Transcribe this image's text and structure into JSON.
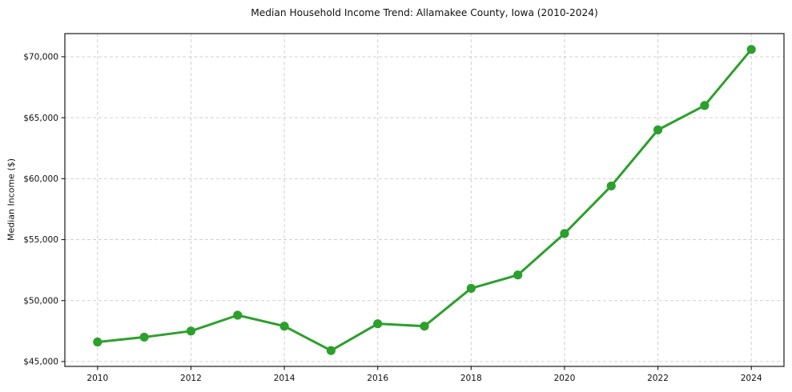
{
  "chart_data": {
    "type": "line",
    "title": "Median Household Income Trend: Allamakee County, Iowa (2010-2024)",
    "xlabel": "",
    "ylabel": "Median Income ($)",
    "series": [
      {
        "name": "Median Household Income",
        "x": [
          2010,
          2011,
          2012,
          2013,
          2014,
          2015,
          2016,
          2017,
          2018,
          2019,
          2020,
          2021,
          2022,
          2023,
          2024
        ],
        "values": [
          46600,
          47000,
          47500,
          48800,
          47900,
          45900,
          48100,
          47900,
          51000,
          52100,
          55500,
          59400,
          64000,
          66000,
          70600
        ]
      }
    ],
    "xlim": [
      2009.3,
      2024.7
    ],
    "ylim": [
      44600,
      71900
    ],
    "xticks": [
      2010,
      2012,
      2014,
      2016,
      2018,
      2020,
      2022,
      2024
    ],
    "yticks": [
      45000,
      50000,
      55000,
      60000,
      65000,
      70000
    ],
    "ytick_labels": [
      "$45,000",
      "$50,000",
      "$55,000",
      "$60,000",
      "$65,000",
      "$70,000"
    ],
    "grid": true,
    "grid_style": "dashed",
    "legend_position": "none",
    "colors": {
      "line": "#2ca02c",
      "marker": "#2ca02c",
      "grid": "#cccccc",
      "spine": "#1a1a1a",
      "background": "#ffffff",
      "text": "#111111"
    }
  }
}
